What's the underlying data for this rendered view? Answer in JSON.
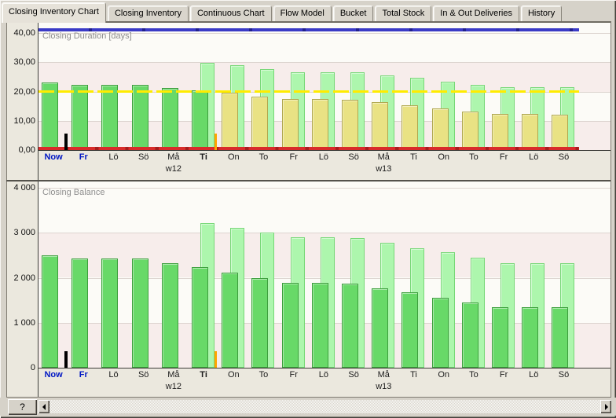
{
  "tabs": [
    {
      "label": "Closing Inventory Chart",
      "active": true
    },
    {
      "label": "Closing Inventory",
      "active": false
    },
    {
      "label": "Continuous Chart",
      "active": false
    },
    {
      "label": "Flow Model",
      "active": false
    },
    {
      "label": "Bucket",
      "active": false
    },
    {
      "label": "Total Stock",
      "active": false
    },
    {
      "label": "In & Out Deliveries",
      "active": false
    },
    {
      "label": "History",
      "active": false
    }
  ],
  "status": {
    "help_label": "?"
  },
  "palette": {
    "bar_green": "#68d968",
    "bar_green_border": "#3c9e3c",
    "bar_light_green": "#adf6ad",
    "bar_light_green_border": "#76d776",
    "bar_yellow": "#e9e284",
    "bar_yellow_border": "#b0a74e",
    "line_red": "#d92b2b",
    "line_yellow": "#ffec00",
    "line_blue": "#3a3ac6",
    "marker_black": "#000000",
    "marker_orange": "#ffa500",
    "day_blue": "#0017c4"
  },
  "chart_data": [
    {
      "type": "bar",
      "title": "Closing Duration [days]",
      "ylabel": "days",
      "ylim": [
        0,
        40
      ],
      "y_tick_labels": [
        "40,00",
        "30,00",
        "20,00",
        "10,00",
        "0,00"
      ],
      "categories": [
        "Now",
        "Fr",
        "Lö",
        "Sö",
        "Må",
        "Ti",
        "On",
        "To",
        "Fr",
        "Lö",
        "Sö",
        "Må",
        "Ti",
        "On",
        "To",
        "Fr",
        "Lö",
        "Sö"
      ],
      "week_labels": [
        {
          "index": 4,
          "label": "w12"
        },
        {
          "index": 11,
          "label": "w13"
        }
      ],
      "blue_categories": [
        0,
        1
      ],
      "bold_categories": [
        0,
        1,
        5
      ],
      "series": [
        {
          "name": "back",
          "color": "bar_light_green",
          "values": [
            null,
            null,
            null,
            null,
            null,
            29.7,
            28.9,
            27.7,
            26.7,
            26.7,
            26.6,
            25.5,
            24.6,
            23.5,
            22.4,
            21.4,
            21.4,
            21.4
          ]
        },
        {
          "name": "front",
          "values": [
            23.0,
            22.3,
            22.3,
            22.2,
            21.1,
            20.4,
            19.5,
            18.4,
            17.5,
            17.4,
            17.3,
            16.3,
            15.4,
            14.3,
            13.3,
            12.3,
            12.3,
            12.2
          ],
          "point_colors": [
            "bar_green",
            "bar_green",
            "bar_green",
            "bar_green",
            "bar_green",
            "bar_green",
            "bar_yellow",
            "bar_yellow",
            "bar_yellow",
            "bar_yellow",
            "bar_yellow",
            "bar_yellow",
            "bar_yellow",
            "bar_yellow",
            "bar_yellow",
            "bar_yellow",
            "bar_yellow",
            "bar_yellow"
          ]
        }
      ],
      "reference_lines": [
        {
          "label": "max-blue",
          "value": 41.2,
          "color": "line_blue"
        },
        {
          "label": "target-yellow",
          "value": 20,
          "color": "line_yellow",
          "dashed": true
        },
        {
          "label": "zero-red",
          "value": 0.5,
          "color": "line_red"
        }
      ],
      "markers": [
        {
          "name": "black",
          "boundary": 1
        },
        {
          "name": "orange",
          "boundary": 6
        }
      ]
    },
    {
      "type": "bar",
      "title": "Closing Balance",
      "ylim": [
        0,
        4000
      ],
      "y_tick_labels": [
        "4 000",
        "3 000",
        "2 000",
        "1 000",
        "0"
      ],
      "categories": [
        "Now",
        "Fr",
        "Lö",
        "Sö",
        "Må",
        "Ti",
        "On",
        "To",
        "Fr",
        "Lö",
        "Sö",
        "Må",
        "Ti",
        "On",
        "To",
        "Fr",
        "Lö",
        "Sö"
      ],
      "week_labels": [
        {
          "index": 4,
          "label": "w12"
        },
        {
          "index": 11,
          "label": "w13"
        }
      ],
      "blue_categories": [
        0,
        1
      ],
      "bold_categories": [
        0,
        1,
        5
      ],
      "series": [
        {
          "name": "back",
          "color": "bar_light_green",
          "values": [
            null,
            null,
            null,
            null,
            null,
            3220,
            3110,
            3000,
            2890,
            2890,
            2885,
            2770,
            2660,
            2560,
            2440,
            2330,
            2330,
            2330
          ]
        },
        {
          "name": "front",
          "color": "bar_green",
          "values": [
            2490,
            2430,
            2430,
            2430,
            2330,
            2230,
            2120,
            1990,
            1880,
            1880,
            1875,
            1770,
            1670,
            1560,
            1450,
            1340,
            1340,
            1340
          ]
        }
      ],
      "reference_lines": [],
      "markers": [
        {
          "name": "black",
          "boundary": 1
        },
        {
          "name": "orange",
          "boundary": 6
        }
      ]
    }
  ]
}
